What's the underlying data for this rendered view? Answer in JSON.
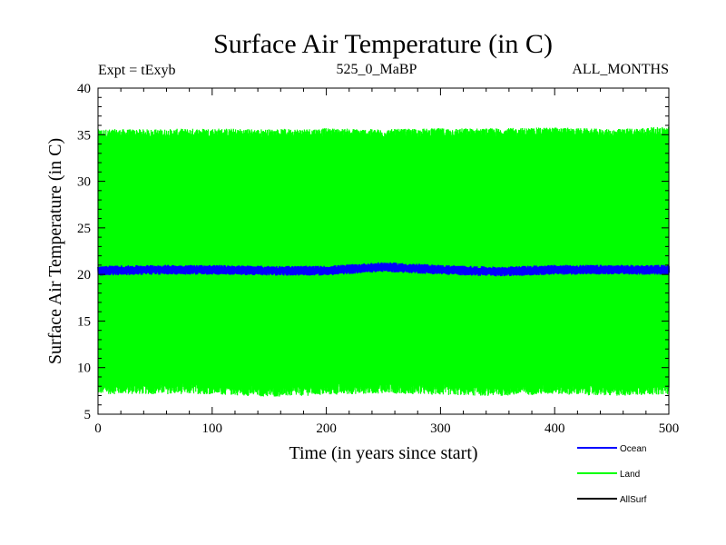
{
  "title": "Surface Air Temperature (in C)",
  "subtitle_left": "Expt = tExyb",
  "subtitle_center": "525_0_MaBP",
  "subtitle_right": "ALL_MONTHS",
  "colors": {
    "ocean": "#0000ff",
    "land": "#00ff00",
    "allsurf": "#000000",
    "axes": "#000000",
    "background": "#ffffff"
  },
  "chart_data": {
    "type": "line",
    "title": "Surface Air Temperature (in C)",
    "xlabel": "Time (in years since start)",
    "ylabel": "Surface Air Temperature (in C)",
    "xlim": [
      0,
      500
    ],
    "ylim": [
      5,
      40
    ],
    "x_ticks": [
      0,
      100,
      200,
      300,
      400,
      500
    ],
    "y_ticks": [
      5,
      10,
      15,
      20,
      25,
      30,
      35,
      40
    ],
    "grid": false,
    "legend_position": "bottom-right",
    "series": [
      {
        "name": "Ocean",
        "color": "#0000ff",
        "description": "annual cycle",
        "x": [
          0,
          50,
          100,
          150,
          200,
          250,
          300,
          350,
          400,
          450,
          500
        ],
        "min": [
          20.0,
          20.1,
          20.1,
          20.0,
          20.0,
          20.4,
          20.1,
          19.9,
          20.1,
          20.1,
          20.1
        ],
        "max": [
          20.8,
          20.9,
          20.9,
          20.8,
          20.8,
          21.2,
          20.9,
          20.7,
          20.9,
          20.9,
          20.9
        ]
      },
      {
        "name": "Land",
        "color": "#00ff00",
        "description": "annual cycle",
        "x": [
          0,
          50,
          100,
          150,
          200,
          250,
          300,
          350,
          400,
          450,
          500
        ],
        "min": [
          7.5,
          7.5,
          7.5,
          7.2,
          7.4,
          7.6,
          7.4,
          7.3,
          7.5,
          7.3,
          7.5
        ],
        "max": [
          35.3,
          35.3,
          35.4,
          35.3,
          35.4,
          35.3,
          35.4,
          35.4,
          35.5,
          35.3,
          35.6
        ]
      },
      {
        "name": "AllSurf",
        "color": "#000000",
        "x": [],
        "values": []
      }
    ]
  }
}
